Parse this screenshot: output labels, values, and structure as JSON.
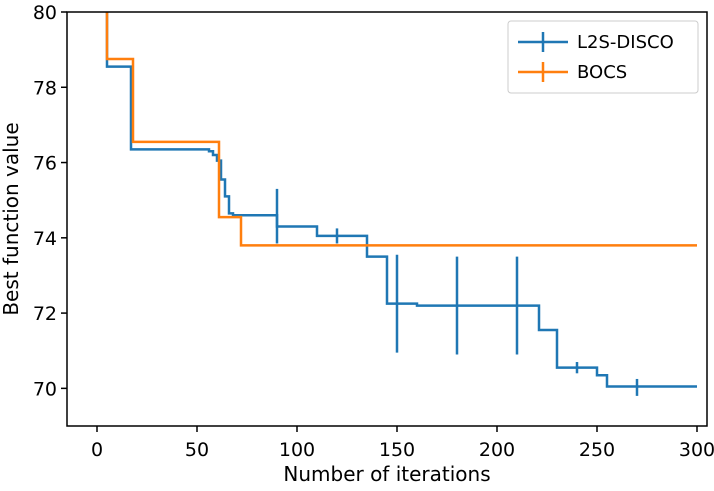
{
  "chart_data": {
    "type": "line",
    "title": "",
    "xlabel": "Number of iterations",
    "ylabel": "Best function value",
    "xlim": [
      -15,
      305
    ],
    "ylim": [
      69.0,
      80.0
    ],
    "x_ticks": [
      0,
      50,
      100,
      150,
      200,
      250,
      300
    ],
    "y_ticks": [
      70,
      72,
      74,
      76,
      78,
      80
    ],
    "x_tick_labels": [
      "0",
      "50",
      "100",
      "150",
      "200",
      "250",
      "300"
    ],
    "y_tick_labels": [
      "70",
      "72",
      "74",
      "76",
      "78",
      "80"
    ],
    "grid": false,
    "legend_position": "top-right",
    "series": [
      {
        "name": "L2S-DISCO",
        "color": "#1f77b4",
        "step": "post",
        "x": [
          5,
          5,
          17,
          17,
          56,
          58,
          60,
          62,
          64,
          66,
          68,
          90,
          100,
          110,
          120,
          135,
          145,
          150,
          160,
          210,
          221,
          230,
          240,
          250,
          255,
          260,
          270,
          300
        ],
        "y": [
          80.5,
          78.55,
          78.55,
          76.35,
          76.3,
          76.2,
          76.05,
          75.55,
          75.1,
          74.65,
          74.6,
          74.3,
          74.3,
          74.05,
          74.05,
          73.5,
          72.25,
          72.25,
          72.2,
          72.2,
          71.55,
          70.55,
          70.55,
          70.35,
          70.05,
          70.05,
          70.05,
          70.05
        ],
        "error_bars": [
          {
            "x": 90,
            "y": 74.55,
            "low": 73.85,
            "high": 75.3
          },
          {
            "x": 120,
            "y": 74.05,
            "low": 73.85,
            "high": 74.25
          },
          {
            "x": 150,
            "y": 72.25,
            "low": 70.95,
            "high": 73.55
          },
          {
            "x": 180,
            "y": 72.2,
            "low": 70.9,
            "high": 73.5
          },
          {
            "x": 210,
            "y": 72.2,
            "low": 70.9,
            "high": 73.5
          },
          {
            "x": 240,
            "y": 70.55,
            "low": 70.4,
            "high": 70.7
          },
          {
            "x": 270,
            "y": 70.05,
            "low": 69.8,
            "high": 70.25
          }
        ]
      },
      {
        "name": "BOCS",
        "color": "#ff7f0e",
        "step": "post",
        "x": [
          5,
          5,
          18,
          18,
          61,
          61,
          72,
          72,
          300
        ],
        "y": [
          80.5,
          78.75,
          78.75,
          76.55,
          76.55,
          74.55,
          74.55,
          73.8,
          73.8
        ],
        "error_bars": []
      }
    ]
  }
}
